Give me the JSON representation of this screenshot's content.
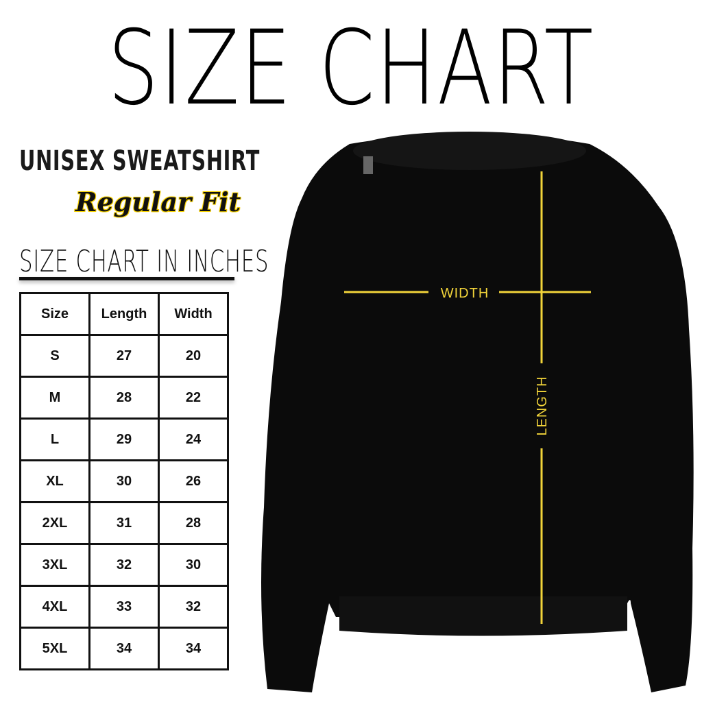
{
  "title": "SIZE CHART",
  "product": "UNISEX SWEATSHIRT",
  "fit": "Regular Fit",
  "subtitle": "SIZE CHART IN INCHES",
  "table": {
    "headers": [
      "Size",
      "Length",
      "Width"
    ],
    "rows": [
      [
        "S",
        "27",
        "20"
      ],
      [
        "M",
        "28",
        "22"
      ],
      [
        "L",
        "29",
        "24"
      ],
      [
        "XL",
        "30",
        "26"
      ],
      [
        "2XL",
        "31",
        "28"
      ],
      [
        "3XL",
        "32",
        "30"
      ],
      [
        "4XL",
        "33",
        "32"
      ],
      [
        "5XL",
        "34",
        "34"
      ]
    ]
  },
  "diagram": {
    "width_label": "WIDTH",
    "length_label": "LENGTH",
    "line_color": "#f2d43a",
    "garment_color": "#0b0b0b"
  }
}
